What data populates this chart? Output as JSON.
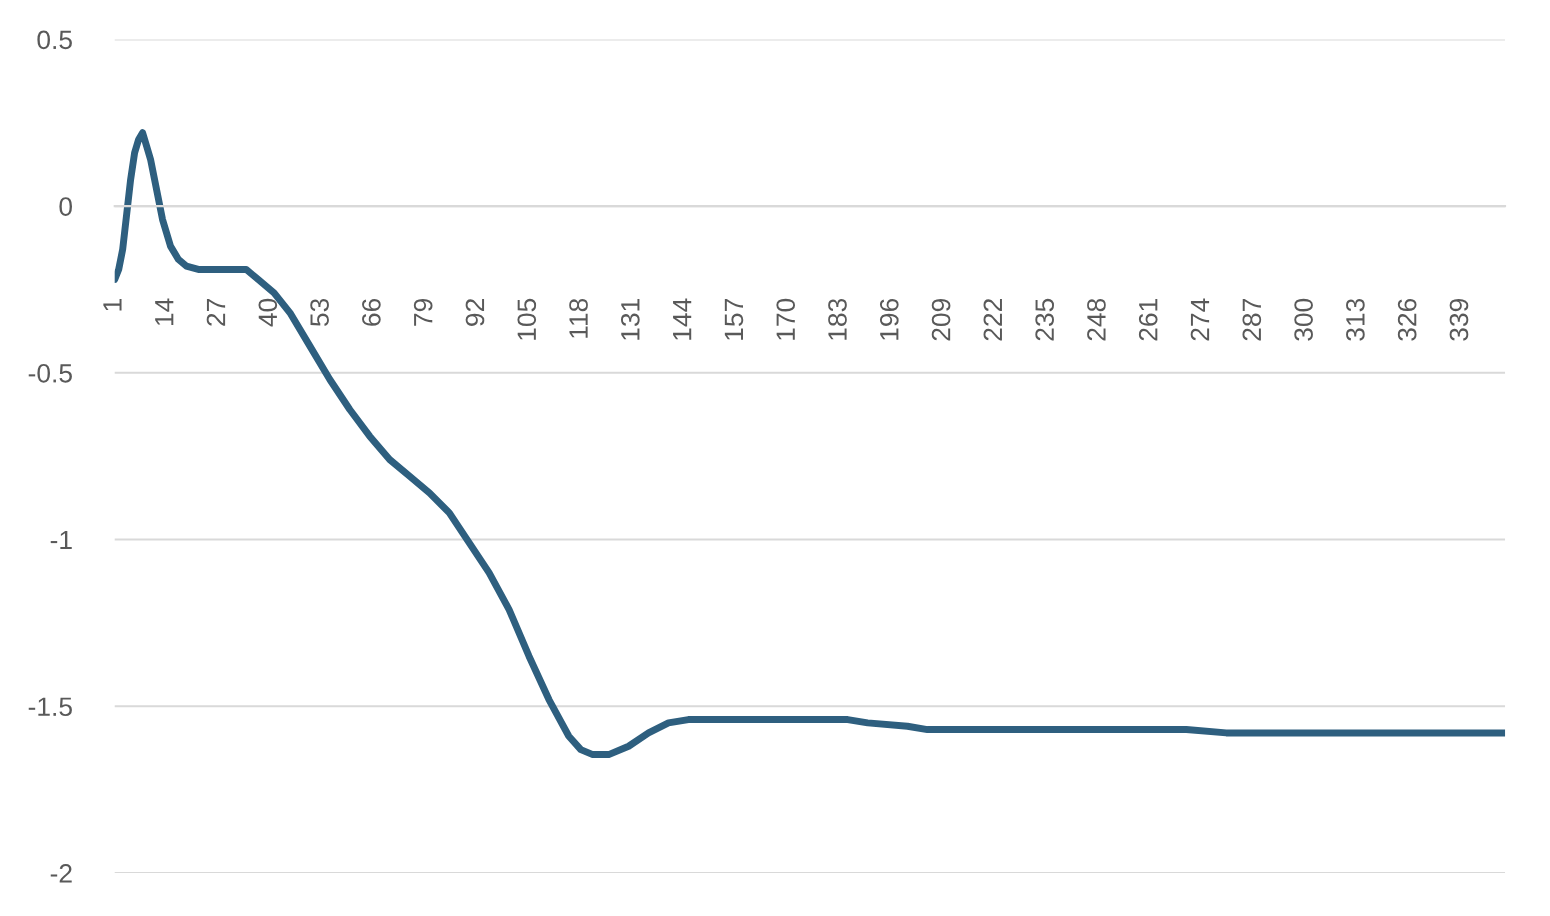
{
  "chart_data": {
    "type": "line",
    "x": [
      1,
      2,
      3,
      5,
      6,
      7,
      8,
      9,
      10,
      11,
      12,
      13,
      14,
      15,
      17,
      19,
      22,
      25,
      30,
      34,
      37,
      41,
      45,
      50,
      55,
      60,
      65,
      70,
      75,
      80,
      85,
      90,
      95,
      100,
      105,
      110,
      115,
      118,
      121,
      125,
      130,
      135,
      140,
      145,
      150,
      160,
      185,
      190,
      200,
      205,
      250,
      255,
      270,
      280,
      350
    ],
    "series": [
      {
        "color": "#2e5f7f",
        "values": [
          -0.22,
          -0.19,
          -0.13,
          0.08,
          0.16,
          0.2,
          0.22,
          0.18,
          0.14,
          0.08,
          0.02,
          -0.04,
          -0.08,
          -0.12,
          -0.16,
          -0.18,
          -0.19,
          -0.19,
          -0.19,
          -0.19,
          -0.22,
          -0.26,
          -0.32,
          -0.42,
          -0.52,
          -0.61,
          -0.69,
          -0.76,
          -0.81,
          -0.86,
          -0.92,
          -1.01,
          -1.1,
          -1.21,
          -1.35,
          -1.48,
          -1.59,
          -1.63,
          -1.645,
          -1.645,
          -1.62,
          -1.58,
          -1.55,
          -1.54,
          -1.54,
          -1.54,
          -1.54,
          -1.55,
          -1.56,
          -1.57,
          -1.57,
          -1.57,
          -1.57,
          -1.58,
          -1.58
        ]
      }
    ],
    "xlim": [
      1,
      350
    ],
    "xticks": [
      1,
      14,
      27,
      40,
      53,
      66,
      79,
      92,
      105,
      118,
      131,
      144,
      157,
      170,
      183,
      196,
      209,
      222,
      235,
      248,
      261,
      274,
      287,
      300,
      313,
      326,
      339
    ],
    "ylim": [
      -2,
      0.5
    ],
    "yticks": [
      -2,
      -1.5,
      -1,
      -0.5,
      0,
      0.5
    ],
    "grid": "y",
    "legend": false,
    "marker": "none",
    "line_style": "solid"
  }
}
